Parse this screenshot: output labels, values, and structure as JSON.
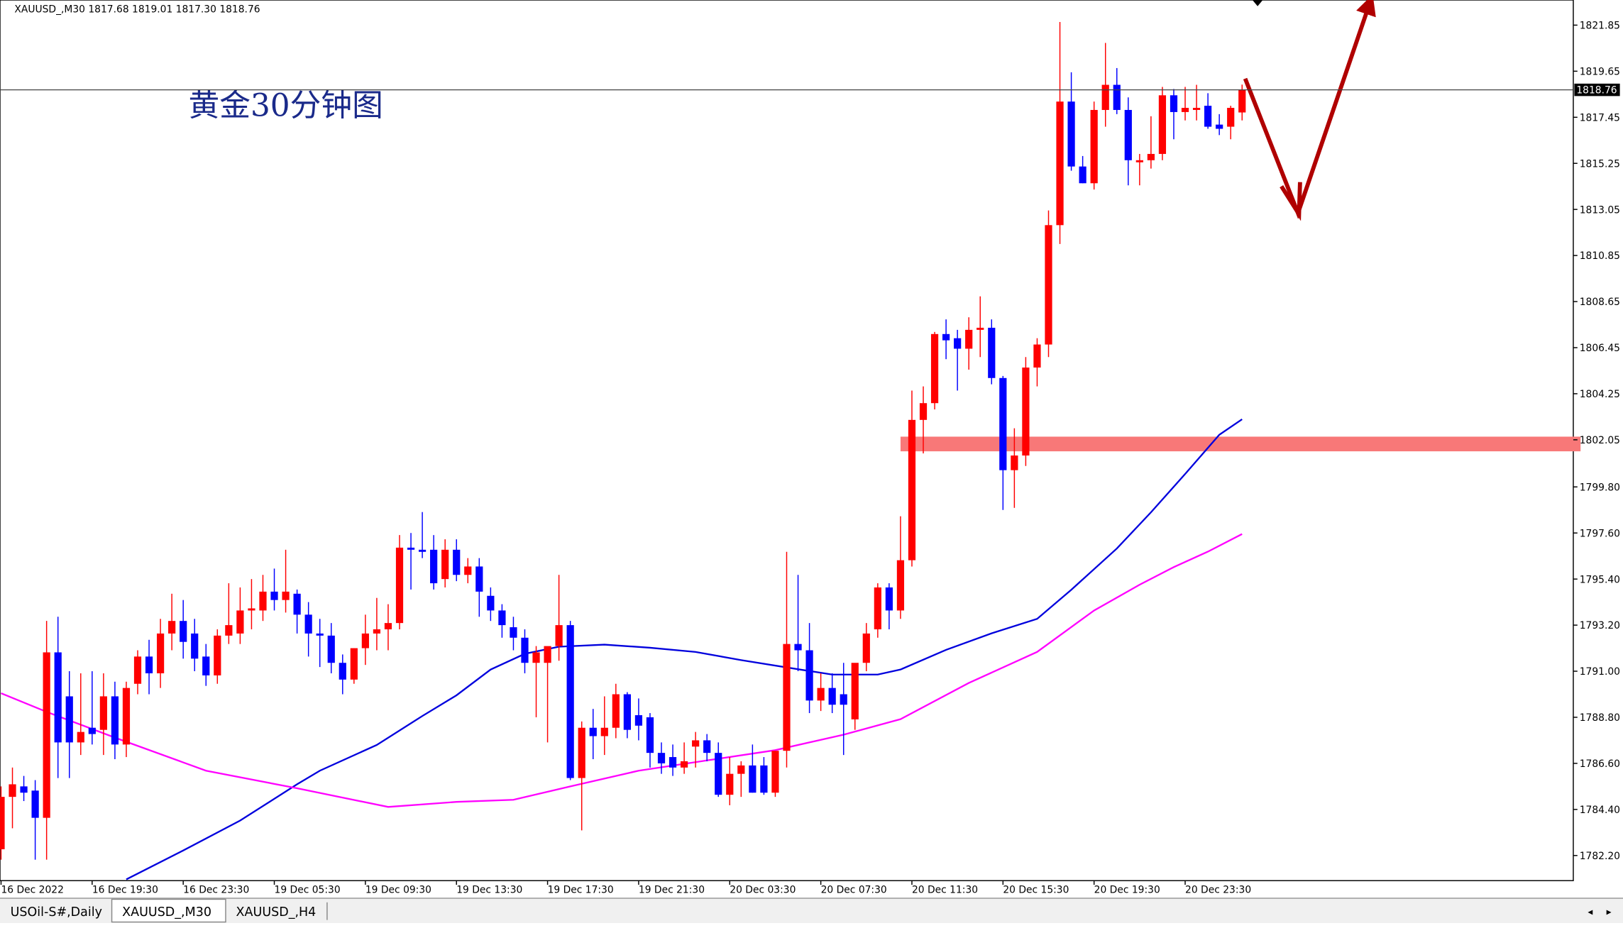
{
  "header": "XAUUSD_,M30  1817.68 1819.01 1817.30 1818.76",
  "tabs": [
    "USOil-S#,Daily",
    "XAUUSD_,M30",
    "XAUUSD_,H4"
  ],
  "chart_data": {
    "type": "candlestick",
    "annotation": "黄金30分钟图",
    "categories": [
      "16 Dec 2022",
      null,
      null,
      null,
      null,
      null,
      null,
      null,
      "16 Dec 19:30",
      null,
      null,
      null,
      null,
      null,
      null,
      null,
      "16 Dec 23:30",
      null,
      null,
      null,
      null,
      null,
      null,
      null,
      "19 Dec 05:30",
      null,
      null,
      null,
      null,
      null,
      null,
      null,
      "19 Dec 09:30",
      null,
      null,
      null,
      null,
      null,
      null,
      null,
      "19 Dec 13:30",
      null,
      null,
      null,
      null,
      null,
      null,
      null,
      "19 Dec 17:30",
      null,
      null,
      null,
      null,
      null,
      null,
      null,
      "19 Dec 21:30",
      null,
      null,
      null,
      null,
      null,
      null,
      null,
      "20 Dec 03:30",
      null,
      null,
      null,
      null,
      null,
      null,
      null,
      "20 Dec 07:30",
      null,
      null,
      null,
      null,
      null,
      null,
      null,
      "20 Dec 11:30",
      null,
      null,
      null,
      null,
      null,
      null,
      null,
      "20 Dec 15:30",
      null,
      null,
      null,
      null,
      null,
      null,
      null,
      "20 Dec 19:30",
      null,
      null,
      null,
      null,
      null,
      null,
      null,
      "20 Dec 23:30",
      null,
      null,
      null,
      null,
      null
    ],
    "open": [
      1782.5,
      1785.0,
      1785.5,
      1785.3,
      1784.0,
      1791.9,
      1789.8,
      1787.6,
      1788.3,
      1788.2,
      1789.8,
      1787.5,
      1790.4,
      1791.7,
      1790.9,
      1792.8,
      1793.4,
      1792.8,
      1791.7,
      1790.8,
      1792.7,
      1792.8,
      1793.9,
      1793.9,
      1794.8,
      1794.4,
      1794.7,
      1793.7,
      1792.8,
      1792.7,
      1791.4,
      1790.6,
      1792.1,
      1792.8,
      1793.0,
      1793.3,
      1796.9,
      1796.8,
      1796.8,
      1795.4,
      1796.8,
      1795.6,
      1796.0,
      1794.6,
      1793.9,
      1793.1,
      1792.6,
      1791.4,
      1791.4,
      1792.2,
      1793.2,
      1785.9,
      1788.3,
      1787.9,
      1788.3,
      1789.9,
      1788.9,
      1788.8,
      1787.1,
      1786.9,
      1786.4,
      1787.4,
      1787.7,
      1787.1,
      1785.1,
      1786.1,
      1786.5,
      1786.5,
      1785.2,
      1787.2,
      1792.3,
      1792.0,
      1789.6,
      1790.2,
      1789.9,
      1788.7,
      1791.4,
      1793.0,
      1795.0,
      1793.9,
      1796.3,
      1803.0,
      1803.8,
      1807.1,
      1806.9,
      1806.4,
      1807.3,
      1807.4,
      1805.0,
      1800.6,
      1801.3,
      1805.5,
      1806.6,
      1812.3,
      1818.2,
      1815.1,
      1814.3,
      1817.8,
      1819.0,
      1817.8,
      1815.3,
      1815.4,
      1815.7,
      1818.5,
      1817.7,
      1817.8,
      1818.0,
      1817.1,
      1817.0,
      1817.68
    ],
    "high": [
      1785.5,
      1786.4,
      1786.0,
      1785.8,
      1793.4,
      1793.6,
      1791.0,
      1790.9,
      1791.0,
      1790.9,
      1790.5,
      1790.5,
      1792.0,
      1792.5,
      1793.5,
      1794.7,
      1794.4,
      1793.5,
      1792.3,
      1793.0,
      1795.2,
      1795.0,
      1795.4,
      1795.6,
      1795.9,
      1796.8,
      1794.9,
      1794.3,
      1793.5,
      1793.3,
      1791.8,
      1792.1,
      1793.7,
      1794.5,
      1794.2,
      1797.5,
      1797.6,
      1798.6,
      1797.5,
      1797.3,
      1797.3,
      1796.4,
      1796.4,
      1795.0,
      1794.2,
      1793.6,
      1793.0,
      1792.2,
      1792.1,
      1795.6,
      1793.4,
      1788.6,
      1789.2,
      1789.8,
      1790.4,
      1790.0,
      1789.7,
      1789.0,
      1787.6,
      1787.5,
      1787.6,
      1788.1,
      1788.0,
      1787.6,
      1786.9,
      1786.7,
      1787.5,
      1786.9,
      1787.2,
      1796.7,
      1795.6,
      1793.3,
      1790.9,
      1790.9,
      1791.4,
      1791.2,
      1793.3,
      1795.2,
      1795.2,
      1798.4,
      1804.4,
      1804.6,
      1807.2,
      1807.8,
      1807.3,
      1807.9,
      1808.9,
      1807.8,
      1805.1,
      1802.6,
      1806.0,
      1806.9,
      1813.0,
      1822.0,
      1819.6,
      1815.6,
      1818.2,
      1821.0,
      1819.8,
      1818.4,
      1815.7,
      1817.5,
      1818.9,
      1818.8,
      1818.9,
      1819.0,
      1818.6,
      1817.6,
      1818.0,
      1819.01
    ],
    "low": [
      1782.0,
      1783.5,
      1784.8,
      1782.0,
      1782.0,
      1785.9,
      1785.9,
      1787.0,
      1787.5,
      1787.0,
      1786.8,
      1786.9,
      1789.9,
      1789.9,
      1790.2,
      1792.0,
      1791.6,
      1791.0,
      1790.3,
      1790.4,
      1792.3,
      1792.3,
      1793.0,
      1793.4,
      1793.9,
      1793.8,
      1792.8,
      1791.7,
      1791.2,
      1790.9,
      1789.9,
      1790.4,
      1791.3,
      1792.0,
      1792.0,
      1793.0,
      1794.9,
      1796.4,
      1794.9,
      1795.0,
      1795.3,
      1795.2,
      1793.6,
      1793.4,
      1792.6,
      1792.0,
      1790.9,
      1788.8,
      1787.6,
      1791.5,
      1785.8,
      1783.4,
      1786.8,
      1787.0,
      1787.8,
      1787.8,
      1787.7,
      1786.4,
      1786.1,
      1786.0,
      1786.1,
      1786.4,
      1786.7,
      1785.0,
      1784.6,
      1785.0,
      1785.2,
      1785.1,
      1785.0,
      1786.4,
      1791.0,
      1789.0,
      1789.1,
      1789.0,
      1787.0,
      1788.2,
      1791.0,
      1792.6,
      1793.0,
      1793.5,
      1796.0,
      1801.4,
      1803.5,
      1805.9,
      1804.4,
      1805.4,
      1806.0,
      1804.7,
      1798.7,
      1798.8,
      1800.8,
      1804.6,
      1806.0,
      1811.4,
      1814.9,
      1814.3,
      1814.0,
      1817.0,
      1817.6,
      1814.2,
      1814.2,
      1815.0,
      1815.4,
      1816.4,
      1817.3,
      1817.3,
      1816.9,
      1816.6,
      1816.4,
      1817.3
    ],
    "close": [
      1785.0,
      1785.6,
      1785.2,
      1784.0,
      1791.9,
      1787.6,
      1787.6,
      1788.1,
      1788.0,
      1789.8,
      1787.5,
      1790.2,
      1791.7,
      1790.9,
      1792.8,
      1793.4,
      1792.4,
      1791.6,
      1790.8,
      1792.7,
      1793.2,
      1793.9,
      1794.0,
      1794.8,
      1794.4,
      1794.8,
      1793.7,
      1792.8,
      1792.7,
      1791.4,
      1790.6,
      1792.1,
      1792.8,
      1793.0,
      1793.3,
      1796.9,
      1796.8,
      1796.7,
      1795.2,
      1796.8,
      1795.6,
      1796.0,
      1794.8,
      1793.9,
      1793.2,
      1792.6,
      1791.4,
      1791.9,
      1792.2,
      1793.2,
      1785.9,
      1788.3,
      1787.9,
      1788.3,
      1789.9,
      1788.2,
      1788.4,
      1787.1,
      1786.6,
      1786.4,
      1786.7,
      1787.7,
      1787.1,
      1785.1,
      1786.1,
      1786.5,
      1785.2,
      1785.2,
      1787.2,
      1792.3,
      1792.0,
      1789.6,
      1790.2,
      1789.4,
      1789.4,
      1791.4,
      1792.8,
      1795.0,
      1793.9,
      1796.3,
      1803.0,
      1803.8,
      1807.1,
      1806.8,
      1806.4,
      1807.3,
      1807.4,
      1805.0,
      1800.6,
      1801.3,
      1805.5,
      1806.6,
      1812.3,
      1818.2,
      1815.1,
      1814.3,
      1817.8,
      1819.0,
      1817.8,
      1815.4,
      1815.4,
      1815.7,
      1818.5,
      1817.7,
      1817.9,
      1817.9,
      1817.0,
      1816.9,
      1817.9,
      1818.76
    ],
    "up_color": "#ff0000",
    "down_color": "#0000ff",
    "lines": [
      {
        "color": "#0000dd",
        "x": [
          11,
          16,
          21,
          26,
          28,
          33,
          37,
          40,
          43,
          46,
          49,
          53,
          57,
          61,
          65,
          69,
          73,
          77,
          79,
          83,
          87,
          91,
          94,
          98,
          101,
          104,
          107,
          109
        ],
        "values": [
          1781.06,
          1782.44,
          1783.87,
          1785.6,
          1786.25,
          1787.48,
          1788.86,
          1789.85,
          1791.08,
          1791.83,
          1792.17,
          1792.27,
          1792.12,
          1791.92,
          1791.53,
          1791.18,
          1790.84,
          1790.84,
          1791.08,
          1792.02,
          1792.81,
          1793.5,
          1794.89,
          1796.86,
          1798.59,
          1800.42,
          1802.29,
          1803.03
        ]
      },
      {
        "color": "#ff00ff",
        "x": [
          0,
          4,
          10,
          18,
          26,
          34,
          40,
          45,
          50,
          56,
          62,
          68,
          74,
          79,
          85,
          91,
          96,
          100,
          103,
          106,
          109
        ],
        "values": [
          1789.95,
          1789.06,
          1787.83,
          1786.25,
          1785.41,
          1784.52,
          1784.76,
          1784.86,
          1785.5,
          1786.25,
          1786.74,
          1787.23,
          1787.97,
          1788.71,
          1790.44,
          1791.92,
          1793.9,
          1795.13,
          1795.97,
          1796.71,
          1797.55
        ]
      }
    ],
    "current_price": 1818.76,
    "zone": [
      1801.5,
      1802.2
    ],
    "zone_color": "#f87878",
    "ylim": [
      1781.0,
      1823.05
    ],
    "yticks": [
      1821.85,
      1819.65,
      1817.45,
      1815.25,
      1813.05,
      1810.85,
      1808.65,
      1806.45,
      1804.25,
      1802.05,
      {
        "value": 1799.8,
        "label": "1799.80"
      },
      {
        "value": 1797.6,
        "label": "1797.60"
      },
      {
        "value": 1795.4,
        "label": "1795.40"
      },
      {
        "value": 1793.2,
        "label": "1793.20"
      },
      {
        "value": 1791.0,
        "label": "1791.00"
      },
      {
        "value": 1788.8,
        "label": "1788.80"
      },
      {
        "value": 1786.6,
        "label": "1786.60"
      },
      {
        "value": 1784.4,
        "label": "1784.40"
      },
      {
        "value": 1782.2,
        "label": "1782.20"
      }
    ]
  }
}
